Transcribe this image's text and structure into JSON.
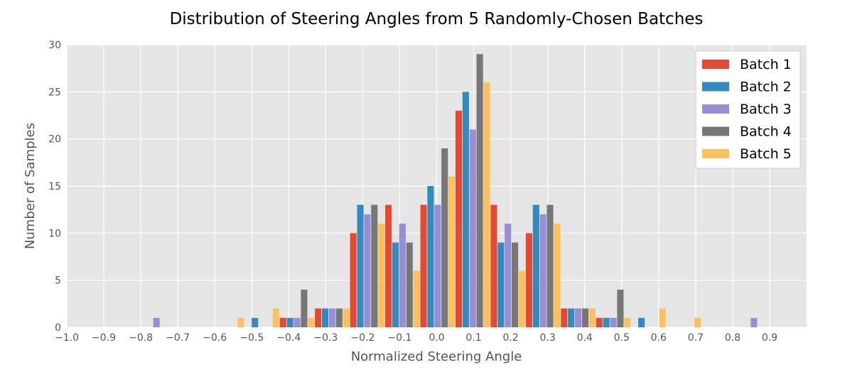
{
  "chart_data": {
    "type": "bar",
    "title": "Distribution of Steering Angles from 5 Randomly-Chosen Batches",
    "xlabel": "Normalized Steering Angle",
    "ylabel": "Number of Samples",
    "xlim": [
      -1.0,
      1.0
    ],
    "ylim": [
      0,
      30
    ],
    "x_ticks": [
      -1.0,
      -0.9,
      -0.8,
      -0.7,
      -0.6,
      -0.5,
      -0.4,
      -0.3,
      -0.2,
      -0.1,
      0.0,
      0.1,
      0.2,
      0.3,
      0.4,
      0.5,
      0.6,
      0.7,
      0.8,
      0.9
    ],
    "x_tick_labels": [
      "−1.0",
      "−0.9",
      "−0.8",
      "−0.7",
      "−0.6",
      "−0.5",
      "−0.4",
      "−0.3",
      "−0.2",
      "−0.1",
      "0.0",
      "0.1",
      "0.2",
      "0.3",
      "0.4",
      "0.5",
      "0.6",
      "0.7",
      "0.8",
      "0.9"
    ],
    "y_ticks": [
      0,
      5,
      10,
      15,
      20,
      25,
      30
    ],
    "y_tick_labels": [
      "0",
      "5",
      "10",
      "15",
      "20",
      "25",
      "30"
    ],
    "bin_starts": [
      -0.9,
      -0.805,
      -0.71,
      -0.615,
      -0.52,
      -0.425,
      -0.33,
      -0.235,
      -0.14,
      -0.045,
      0.05,
      0.145,
      0.24,
      0.335,
      0.43,
      0.525,
      0.62,
      0.715,
      0.81
    ],
    "bin_width": 0.095,
    "grid": true,
    "legend_position": "top-right",
    "series": [
      {
        "name": "Batch 1",
        "color": "#E24A33",
        "values": [
          0,
          0,
          0,
          0,
          0,
          1,
          2,
          10,
          13,
          13,
          23,
          13,
          10,
          2,
          1,
          0,
          0,
          0,
          0
        ]
      },
      {
        "name": "Batch 2",
        "color": "#348ABD",
        "values": [
          0,
          0,
          0,
          0,
          1,
          1,
          2,
          13,
          9,
          15,
          25,
          9,
          13,
          2,
          1,
          1,
          0,
          0,
          0
        ]
      },
      {
        "name": "Batch 3",
        "color": "#988ED5",
        "values": [
          0,
          1,
          0,
          0,
          0,
          1,
          2,
          12,
          11,
          13,
          21,
          11,
          12,
          2,
          1,
          0,
          0,
          0,
          1
        ]
      },
      {
        "name": "Batch 4",
        "color": "#777777",
        "values": [
          0,
          0,
          0,
          0,
          0,
          4,
          2,
          13,
          9,
          19,
          29,
          9,
          13,
          2,
          4,
          0,
          0,
          0,
          0
        ]
      },
      {
        "name": "Batch 5",
        "color": "#FBC15E",
        "values": [
          0,
          0,
          0,
          1,
          2,
          1,
          2,
          11,
          6,
          16,
          26,
          6,
          11,
          2,
          1,
          2,
          1,
          0,
          0
        ]
      }
    ],
    "style": {
      "plot_bg": "#E5E5E5",
      "grid_color": "#FFFFFF",
      "text_color": "#555555",
      "title_color": "#000000",
      "legend_bg": "#FFFFFF",
      "legend_border": "#CCCCCC",
      "legend_text_color": "#000000"
    }
  }
}
